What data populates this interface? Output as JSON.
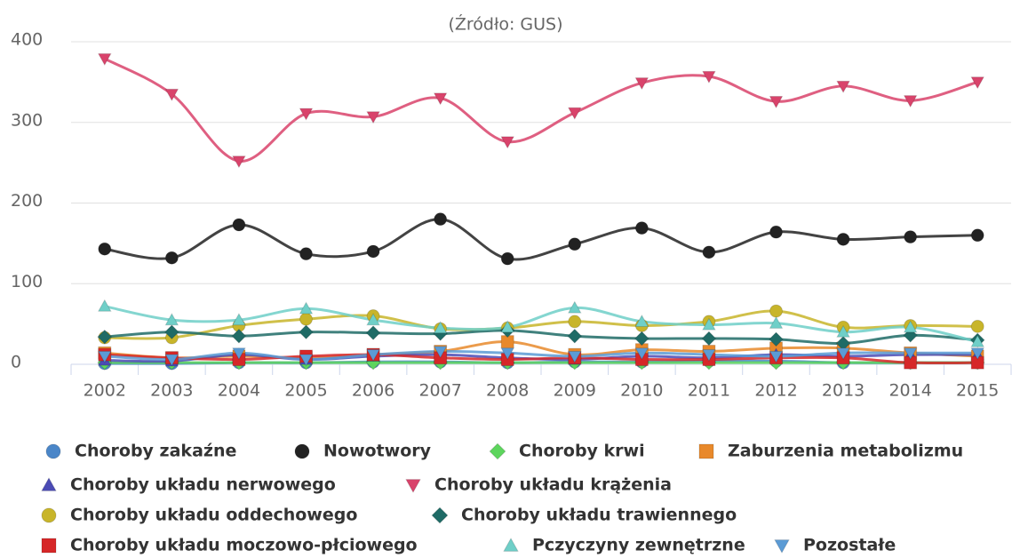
{
  "chart_data": {
    "type": "line",
    "subtitle": "(Źródło: GUS)",
    "categories": [
      "2002",
      "2003",
      "2004",
      "2005",
      "2006",
      "2007",
      "2008",
      "2009",
      "2010",
      "2011",
      "2012",
      "2013",
      "2014",
      "2015"
    ],
    "ylim": [
      0,
      400
    ],
    "yticks": [
      0,
      100,
      200,
      300,
      400
    ],
    "grid": true,
    "smooth": true,
    "series": [
      {
        "name": "Choroby zakaźne",
        "color": "#4a86c8",
        "marker": "circle",
        "values": [
          1,
          1,
          2,
          2,
          3,
          3,
          2,
          3,
          3,
          4,
          4,
          2,
          2,
          2
        ]
      },
      {
        "name": "Nowotwory",
        "color": "#222222",
        "marker": "circle",
        "values": [
          143,
          132,
          173,
          137,
          140,
          180,
          131,
          149,
          169,
          139,
          164,
          155,
          158,
          160
        ]
      },
      {
        "name": "Choroby krwi",
        "color": "#5dd55d",
        "marker": "diamond",
        "values": [
          2,
          2,
          2,
          2,
          2,
          2,
          2,
          2,
          2,
          2,
          2,
          2,
          2,
          2
        ]
      },
      {
        "name": "Zaburzenia metabolizmu",
        "color": "#e8892b",
        "marker": "square",
        "values": [
          14,
          8,
          10,
          8,
          12,
          16,
          28,
          12,
          18,
          16,
          20,
          20,
          14,
          10
        ]
      },
      {
        "name": "Choroby układu nerwowego",
        "color": "#4b4bb5",
        "marker": "triangle",
        "values": [
          5,
          4,
          12,
          6,
          10,
          12,
          8,
          6,
          10,
          8,
          12,
          10,
          12,
          12
        ]
      },
      {
        "name": "Choroby układu krążenia",
        "color": "#d9436b",
        "marker": "triangle-down",
        "values": [
          379,
          335,
          252,
          311,
          307,
          330,
          276,
          312,
          349,
          357,
          326,
          345,
          327,
          350
        ]
      },
      {
        "name": "Choroby układu oddechowego",
        "color": "#c8b52a",
        "marker": "circle",
        "values": [
          33,
          33,
          48,
          56,
          60,
          44,
          45,
          53,
          48,
          53,
          66,
          46,
          48,
          47
        ]
      },
      {
        "name": "Choroby układu trawiennego",
        "color": "#1f6b66",
        "marker": "diamond",
        "values": [
          34,
          40,
          35,
          40,
          39,
          38,
          42,
          35,
          32,
          32,
          31,
          26,
          36,
          30
        ]
      },
      {
        "name": "Choroby układu moczowo-płciowego",
        "color": "#d62728",
        "marker": "square",
        "values": [
          12,
          8,
          6,
          10,
          12,
          8,
          6,
          8,
          6,
          6,
          8,
          8,
          2,
          2
        ]
      },
      {
        "name": "Pczyczyny zewnętrzne",
        "color": "#6fcfc8",
        "marker": "triangle",
        "values": [
          72,
          55,
          55,
          69,
          55,
          45,
          46,
          70,
          53,
          49,
          51,
          40,
          46,
          28
        ]
      },
      {
        "name": "Pozostałe",
        "color": "#5b9bd5",
        "marker": "triangle-down",
        "values": [
          10,
          6,
          14,
          6,
          12,
          16,
          14,
          10,
          14,
          12,
          10,
          14,
          14,
          14
        ]
      }
    ]
  }
}
